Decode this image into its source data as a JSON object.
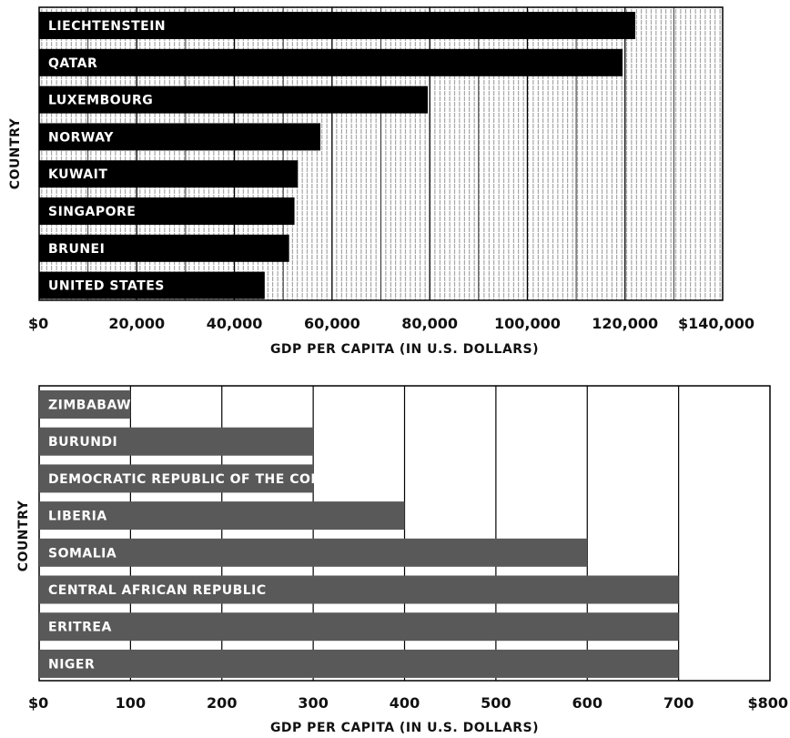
{
  "chart_data": [
    {
      "type": "bar",
      "orientation": "horizontal",
      "categories": [
        "LIECHTENSTEIN",
        "QATAR",
        "LUXEMBOURG",
        "NORWAY",
        "KUWAIT",
        "SINGAPORE",
        "BRUNEI",
        "UNITED STATES"
      ],
      "values": [
        122100,
        119500,
        79600,
        57600,
        53000,
        52300,
        51200,
        46200
      ],
      "xlabel": "GDP PER CAPITA (IN U.S. DOLLARS)",
      "ylabel": "COUNTRY",
      "xlim": [
        0,
        140000
      ],
      "xticks": [
        0,
        20000,
        40000,
        60000,
        80000,
        100000,
        120000,
        140000
      ],
      "xtick_labels": [
        "$0",
        "20,000",
        "40,000",
        "60,000",
        "80,000",
        "100,000",
        "120,000",
        "$140,000"
      ],
      "grid": true,
      "bar_color": "#000000"
    },
    {
      "type": "bar",
      "orientation": "horizontal",
      "categories": [
        "ZIMBABAWE",
        "BURUNDI",
        "DEMOCRATIC REPUBLIC OF THE CONGO",
        "LIBERIA",
        "SOMALIA",
        "CENTRAL AFRICAN REPUBLIC",
        "ERITREA",
        "NIGER"
      ],
      "values": [
        100,
        300,
        300,
        400,
        600,
        700,
        700,
        700
      ],
      "xlabel": "GDP PER CAPITA (IN U.S. DOLLARS)",
      "ylabel": "COUNTRY",
      "xlim": [
        0,
        800
      ],
      "xticks": [
        0,
        100,
        200,
        300,
        400,
        500,
        600,
        700,
        800
      ],
      "xtick_labels": [
        "$0",
        "100",
        "200",
        "300",
        "400",
        "500",
        "600",
        "700",
        "$800"
      ],
      "grid": true,
      "bar_color": "#595959"
    }
  ]
}
